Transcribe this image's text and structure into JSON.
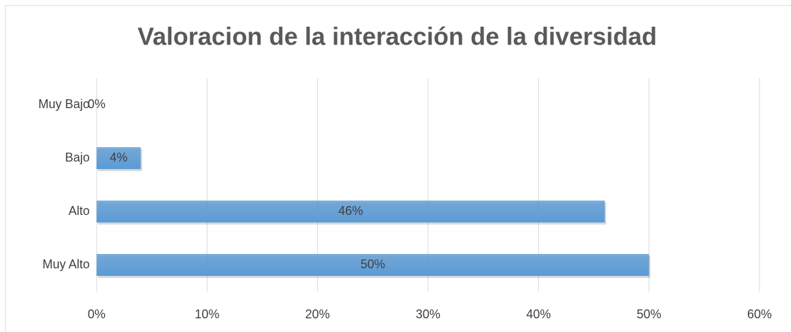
{
  "chart_data": {
    "type": "bar",
    "orientation": "horizontal",
    "title": "Valoracion de la interacción de la diversidad",
    "categories": [
      "Muy Bajo",
      "Bajo",
      "Alto",
      "Muy Alto"
    ],
    "values": [
      0,
      4,
      46,
      50
    ],
    "value_labels": [
      "0%",
      "4%",
      "46%",
      "50%"
    ],
    "color": "#5b9bd5",
    "xlim": [
      0,
      60
    ],
    "xticks": [
      {
        "value": 0,
        "label": "0%"
      },
      {
        "value": 10,
        "label": "10%"
      },
      {
        "value": 20,
        "label": "20%"
      },
      {
        "value": 30,
        "label": "30%"
      },
      {
        "value": 40,
        "label": "40%"
      },
      {
        "value": 50,
        "label": "50%"
      },
      {
        "value": 60,
        "label": "60%"
      }
    ],
    "grid": true
  }
}
